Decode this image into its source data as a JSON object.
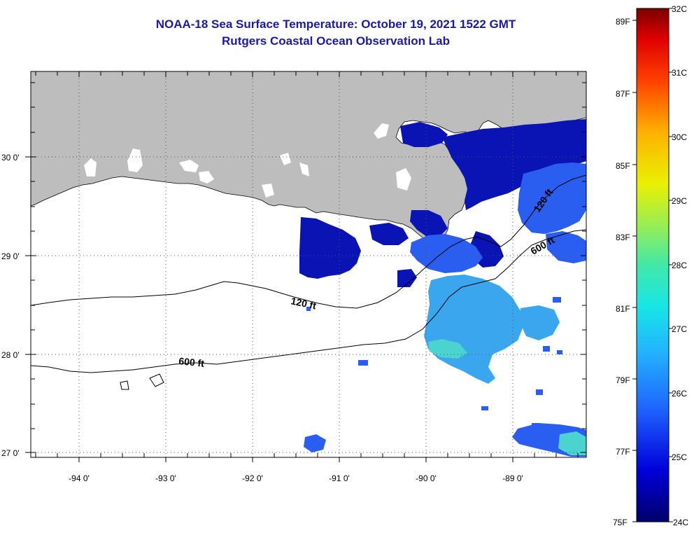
{
  "title": {
    "line1": "NOAA-18 Sea Surface Temperature:  October 19, 2021 1522 GMT",
    "line2": "Rutgers Coastal Ocean Observation Lab"
  },
  "axes": {
    "x_ticks": [
      "-94 0'",
      "-93 0'",
      "-92 0'",
      "-91 0'",
      "-90 0'",
      "-89 0'"
    ],
    "y_ticks": [
      "30 0'",
      "29 0'",
      "28 0'",
      "27 0'"
    ]
  },
  "contours": {
    "isobath_120": "120 ft",
    "isobath_600": "600 ft"
  },
  "colorbar": {
    "fahrenheit": [
      "89F",
      "87F",
      "85F",
      "83F",
      "81F",
      "79F",
      "77F",
      "75F"
    ],
    "celsius": [
      "32C",
      "31C",
      "30C",
      "29C",
      "28C",
      "27C",
      "26C",
      "25C",
      "24C"
    ]
  },
  "colors": {
    "title": "#1a1aa6",
    "land": "#bdbdbd",
    "cloud": "#ffffff",
    "sst_cold": "#00008f",
    "sst_warm": "#800000"
  }
}
